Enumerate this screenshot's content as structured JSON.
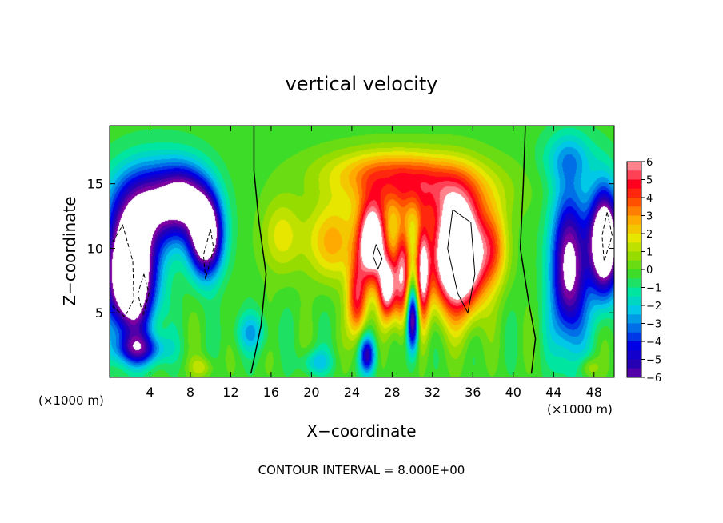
{
  "chart_data": {
    "type": "heatmap",
    "title": "vertical velocity",
    "xlabel": "X−coordinate",
    "ylabel": "Z−coordinate",
    "x_unit": "(×1000 m)",
    "y_unit": "(×1000 m)",
    "xlim": [
      0,
      50
    ],
    "ylim": [
      0,
      19.5
    ],
    "x_ticks": [
      4,
      8,
      12,
      16,
      20,
      24,
      28,
      32,
      36,
      40,
      44,
      48
    ],
    "y_ticks": [
      5,
      10,
      15
    ],
    "colorbar": {
      "range": [
        -6,
        6
      ],
      "ticks": [
        "6",
        "5",
        "4",
        "3",
        "2",
        "1",
        "0",
        "−1",
        "−2",
        "−3",
        "−4",
        "−5",
        "−6"
      ]
    },
    "footer": "CONTOUR INTERVAL = 8.000E+00",
    "features": [
      {
        "x": 2.0,
        "z": 8.0,
        "sx": 2.4,
        "sz": 4.5,
        "amp": -11
      },
      {
        "x": 4.5,
        "z": 13.5,
        "sx": 4.0,
        "sz": 3.2,
        "amp": -6
      },
      {
        "x": 9.5,
        "z": 11.0,
        "sx": 1.6,
        "sz": 3.0,
        "amp": -9
      },
      {
        "x": 7.5,
        "z": 14.0,
        "sx": 2.2,
        "sz": 2.5,
        "amp": -4
      },
      {
        "x": 3.0,
        "z": 2.2,
        "sx": 2.5,
        "sz": 1.2,
        "amp": -4
      },
      {
        "x": 14.0,
        "z": 3.5,
        "sx": 1.8,
        "sz": 1.5,
        "amp": -2
      },
      {
        "x": 17.0,
        "z": 11.0,
        "sx": 2.0,
        "sz": 3.0,
        "amp": 2
      },
      {
        "x": 22.0,
        "z": 10.5,
        "sx": 2.5,
        "sz": 3.0,
        "amp": 3
      },
      {
        "x": 26.0,
        "z": 10.5,
        "sx": 1.4,
        "sz": 3.0,
        "amp": 9
      },
      {
        "x": 27.5,
        "z": 7.0,
        "sx": 0.9,
        "sz": 2.5,
        "amp": 7
      },
      {
        "x": 24.5,
        "z": 6.0,
        "sx": 1.0,
        "sz": 3.0,
        "amp": 5
      },
      {
        "x": 29.0,
        "z": 8.0,
        "sx": 0.8,
        "sz": 4.0,
        "amp": 6
      },
      {
        "x": 31.0,
        "z": 8.0,
        "sx": 0.7,
        "sz": 4.0,
        "amp": 6
      },
      {
        "x": 34.5,
        "z": 9.5,
        "sx": 2.5,
        "sz": 4.2,
        "amp": 12
      },
      {
        "x": 31.0,
        "z": 14.5,
        "sx": 7.0,
        "sz": 2.3,
        "amp": 3.5
      },
      {
        "x": 27.5,
        "z": 16.0,
        "sx": 6.5,
        "sz": 1.8,
        "amp": 2.5
      },
      {
        "x": 38.0,
        "z": 10.0,
        "sx": 1.5,
        "sz": 3.0,
        "amp": 3
      },
      {
        "x": 30.0,
        "z": 4.5,
        "sx": 0.6,
        "sz": 2.5,
        "amp": -7
      },
      {
        "x": 25.5,
        "z": 1.8,
        "sx": 0.8,
        "sz": 1.5,
        "amp": -5
      },
      {
        "x": 20.5,
        "z": 1.2,
        "sx": 1.5,
        "sz": 1.0,
        "amp": -2
      },
      {
        "x": 45.5,
        "z": 8.5,
        "sx": 1.8,
        "sz": 6.0,
        "amp": -7
      },
      {
        "x": 49.0,
        "z": 10.5,
        "sx": 1.5,
        "sz": 4.0,
        "amp": -10
      },
      {
        "x": 45.5,
        "z": 17.0,
        "sx": 2.5,
        "sz": 2.0,
        "amp": -2
      },
      {
        "x": 9.0,
        "z": 0.8,
        "sx": 1.2,
        "sz": 0.8,
        "amp": 1.5
      },
      {
        "x": 47.5,
        "z": 0.8,
        "sx": 1.0,
        "sz": 0.8,
        "amp": 1.5
      }
    ]
  }
}
